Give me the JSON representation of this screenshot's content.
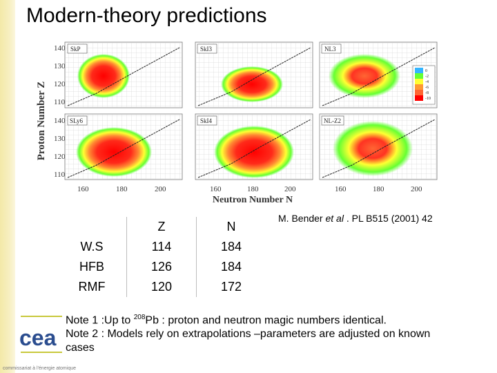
{
  "title": "Modern-theory predictions",
  "figure": {
    "y_axis_label": "Proton Number Z",
    "x_axis_label": "Neutron Number N",
    "y_ticks": [
      "140",
      "130",
      "120",
      "110"
    ],
    "x_ticks": [
      "160",
      "180",
      "200"
    ],
    "panels": [
      "SkP",
      "SkI3",
      "NL3",
      "SLy6",
      "SkI4",
      "NL-Z2"
    ],
    "colorbar_ticks": [
      "0",
      "-2",
      "-4",
      "-6",
      "-8",
      "-10"
    ],
    "colorbar_colors": [
      "#33b5ff",
      "#66ff33",
      "#ffff33",
      "#ff9933",
      "#ff6633",
      "#ff0000"
    ]
  },
  "citation": {
    "author": "M. Bender ",
    "etal": "et al",
    "rest": " . PL B515 (2001) 42"
  },
  "table": {
    "headers": [
      "",
      "Z",
      "N"
    ],
    "rows": [
      {
        "label": "W.S",
        "z": "114",
        "n": "184"
      },
      {
        "label": "HFB",
        "z": "126",
        "n": "184"
      },
      {
        "label": "RMF",
        "z": "120",
        "n": "172"
      }
    ]
  },
  "notes": {
    "note1_prefix": "Note 1 :Up to ",
    "note1_sup": "208",
    "note1_suffix": "Pb : proton and neutron magic numbers identical.",
    "note2": "Note 2 : Models rely on extrapolations –parameters are adjusted on known cases"
  },
  "logo_text": "cea",
  "footer": "commissariat à l'énergie atomique"
}
